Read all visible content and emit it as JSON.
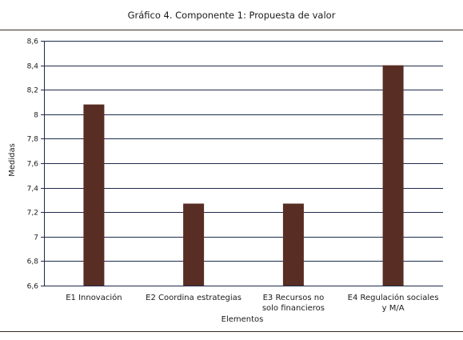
{
  "chart_data": {
    "type": "bar",
    "title": "Gráfico 4. Componente 1: Propuesta de valor",
    "xlabel": "Elementos",
    "ylabel": "Medidas",
    "categories": [
      [
        "E1 Innovación"
      ],
      [
        "E2 Coordina estrategias"
      ],
      [
        "E3  Recursos no",
        "solo financieros"
      ],
      [
        "E4 Regulación sociales",
        "y M/A"
      ]
    ],
    "values": [
      8.08,
      7.27,
      7.27,
      8.4
    ],
    "ylim": [
      6.6,
      8.6
    ],
    "yticks": [
      "6,6",
      "6,8",
      "7",
      "7,2",
      "7,4",
      "7,6",
      "7,8",
      "8",
      "8,2",
      "8,4",
      "8,6"
    ],
    "grid": true,
    "bar_color": "#582d23",
    "grid_color": "#1e2b4c"
  }
}
